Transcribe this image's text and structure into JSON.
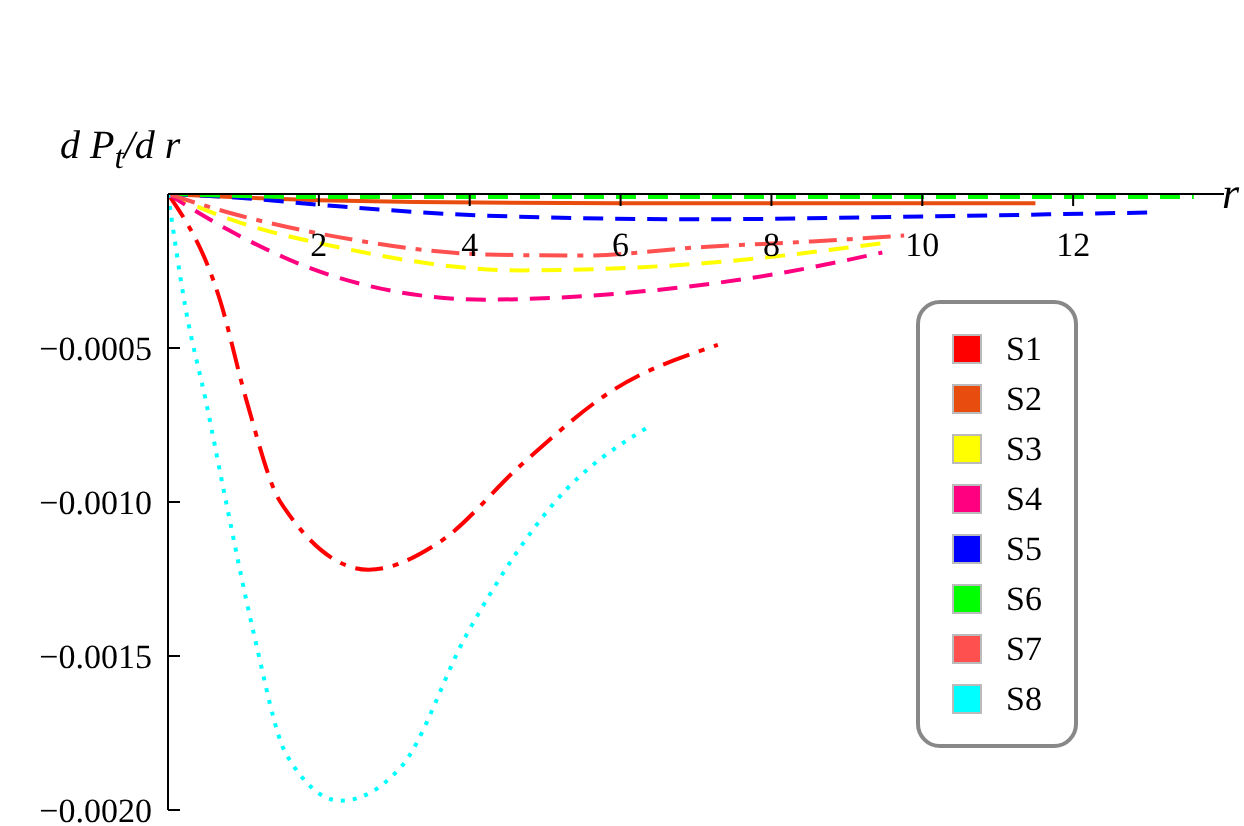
{
  "chart_data": {
    "type": "line",
    "xlabel": "r",
    "ylabel": "d P$_{t}$/d r",
    "xlim": [
      0,
      14
    ],
    "ylim": [
      -0.002,
      0
    ],
    "xticks": [
      2,
      4,
      6,
      8,
      10,
      12
    ],
    "yticks": [
      {
        "value": -0.0005,
        "label": "−0.0005"
      },
      {
        "value": -0.001,
        "label": "−0.0010"
      },
      {
        "value": -0.0015,
        "label": "−0.0015"
      },
      {
        "value": -0.002,
        "label": "−0.0020"
      }
    ],
    "legend": "bottom right",
    "grid": false,
    "series": [
      {
        "name": "S1",
        "color": "#ff0000",
        "line_style": "dashdot",
        "x": [
          0,
          0.69,
          1.04,
          1.49,
          2.66,
          3.6,
          4.68,
          5.88,
          7.29
        ],
        "values": [
          0,
          -0.000345,
          -0.00067,
          -0.001,
          -0.00122,
          -0.00113,
          -0.00088,
          -0.00064,
          -0.00049
        ]
      },
      {
        "name": "S2",
        "color": "#e84c0e",
        "line_style": "solid",
        "x": [
          0,
          2,
          6,
          11.5
        ],
        "values": [
          0,
          -2e-05,
          -3e-05,
          -3e-05
        ]
      },
      {
        "name": "S3",
        "color": "#ffff00",
        "line_style": "dashed",
        "x": [
          0,
          0.8,
          2.26,
          4.68,
          7.1,
          9.52
        ],
        "values": [
          0,
          -8e-05,
          -0.000173,
          -0.000248,
          -0.000225,
          -0.000158
        ]
      },
      {
        "name": "S4",
        "color": "#ff0080",
        "line_style": "dashed",
        "x": [
          0,
          0.81,
          2.26,
          4.2,
          6.12,
          8.05,
          9.47
        ],
        "values": [
          0,
          -0.000118,
          -0.000272,
          -0.000343,
          -0.00032,
          -0.00026,
          -0.00019
        ]
      },
      {
        "name": "S5",
        "color": "#0000ff",
        "line_style": "dashed",
        "x": [
          0,
          0.8,
          2.26,
          4.2,
          7.1,
          10,
          13
        ],
        "values": [
          0,
          -1e-05,
          -4e-05,
          -7e-05,
          -8.2e-05,
          -7.3e-05,
          -6e-05
        ]
      },
      {
        "name": "S6",
        "color": "#00ff00",
        "line_style": "dashed",
        "x": [
          0,
          2,
          13.6
        ],
        "values": [
          0,
          -1e-05,
          -1e-05
        ]
      },
      {
        "name": "S7",
        "color": "#ff5050",
        "line_style": "dashdot",
        "x": [
          0,
          0.8,
          2.26,
          4.2,
          5.5,
          7.1,
          8.53,
          9.76
        ],
        "values": [
          0,
          -6e-05,
          -0.00014,
          -0.000196,
          -0.0002,
          -0.000172,
          -0.000154,
          -0.000135
        ]
      },
      {
        "name": "S8",
        "color": "#00ffff",
        "line_style": "dotted",
        "x": [
          0,
          0.24,
          0.5,
          0.77,
          1.14,
          1.57,
          2.29,
          3.09,
          3.96,
          5.13,
          6.41
        ],
        "values": [
          0,
          -0.00038,
          -0.00067,
          -0.001,
          -0.00143,
          -0.00182,
          -0.00197,
          -0.00186,
          -0.00143,
          -0.001,
          -0.00075
        ]
      }
    ]
  }
}
